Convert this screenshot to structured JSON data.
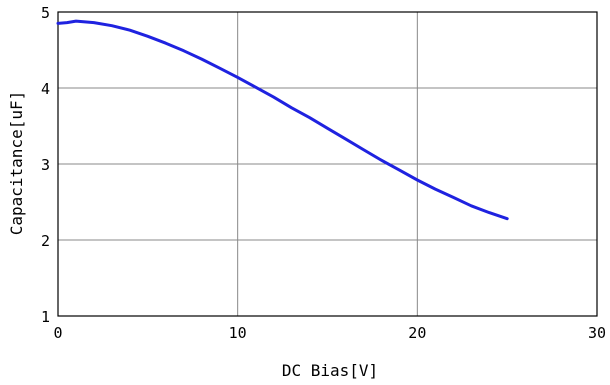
{
  "chart_data": {
    "type": "line",
    "xlabel": "DC Bias[V]",
    "ylabel": "Capacitance[uF]",
    "xlim": [
      0,
      30
    ],
    "ylim": [
      1,
      5
    ],
    "x_ticks": [
      0,
      10,
      20,
      30
    ],
    "y_ticks": [
      1,
      2,
      3,
      4,
      5
    ],
    "grid": true,
    "colors": {
      "line": "#1f22e0",
      "grid": "#888888",
      "frame": "#000000"
    },
    "series": [
      {
        "x": [
          0,
          0.5,
          1,
          1.5,
          2,
          3,
          4,
          5,
          6,
          7,
          8,
          9,
          10,
          11,
          12,
          13,
          14,
          15,
          16,
          17,
          18,
          19,
          20,
          21,
          22,
          23,
          24,
          25
        ],
        "y": [
          4.85,
          4.86,
          4.88,
          4.87,
          4.86,
          4.82,
          4.76,
          4.68,
          4.59,
          4.49,
          4.38,
          4.26,
          4.14,
          4.01,
          3.88,
          3.74,
          3.61,
          3.47,
          3.33,
          3.19,
          3.05,
          2.92,
          2.79,
          2.67,
          2.56,
          2.45,
          2.36,
          2.28
        ]
      }
    ]
  }
}
